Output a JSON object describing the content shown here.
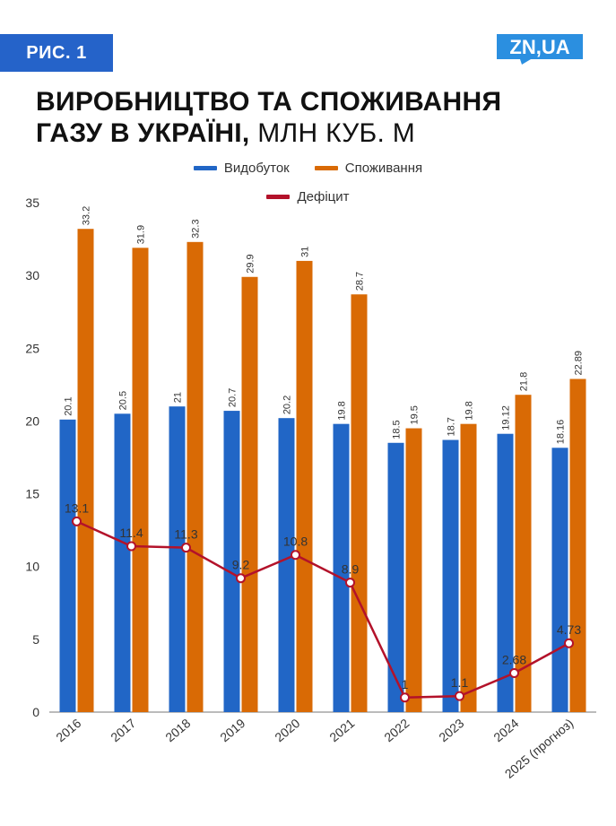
{
  "header": {
    "figure_label": "РИС. 1",
    "logo_text": "ZN,UA",
    "title_bold": "ВИРОБНИЦТВО ТА СПОЖИВАННЯ ГАЗУ В УКРАЇНІ,",
    "title_line1": "ВИРОБНИЦТВО ТА СПОЖИВАННЯ",
    "title_line2_bold": "ГАЗУ В УКРАЇНІ,",
    "title_line2_light": " МЛН КУБ. М"
  },
  "colors": {
    "production": "#2166c6",
    "consumption": "#d96a05",
    "deficit": "#b3122a",
    "axis": "#333333",
    "badge": "#2563c9"
  },
  "chart_data": {
    "type": "bar",
    "categories": [
      "2016",
      "2017",
      "2018",
      "2019",
      "2020",
      "2021",
      "2022",
      "2023",
      "2024",
      "2025 (прогноз)"
    ],
    "series": [
      {
        "name": "Видобуток",
        "kind": "bar",
        "values": [
          20.1,
          20.5,
          21,
          20.7,
          20.2,
          19.8,
          18.5,
          18.7,
          19.12,
          18.16
        ],
        "labels": [
          "20.1",
          "20.5",
          "21",
          "20.7",
          "20.2",
          "19.8",
          "18.5",
          "18.7",
          "19.12",
          "18.16"
        ]
      },
      {
        "name": "Споживання",
        "kind": "bar",
        "values": [
          33.2,
          31.9,
          32.3,
          29.9,
          31,
          28.7,
          19.5,
          19.8,
          21.8,
          22.89
        ],
        "labels": [
          "33.2",
          "31.9",
          "32.3",
          "29.9",
          "31",
          "28.7",
          "19.5",
          "19.8",
          "21.8",
          "22.89"
        ]
      },
      {
        "name": "Дефіцит",
        "kind": "line",
        "values": [
          13.1,
          11.4,
          11.3,
          9.2,
          10.8,
          8.9,
          1,
          1.1,
          2.68,
          4.73
        ],
        "labels": [
          "13.1",
          "11.4",
          "11.3",
          "9.2",
          "10.8",
          "8.9",
          "1",
          "1.1",
          "2.68",
          "4.73"
        ]
      }
    ],
    "y_ticks": [
      "0",
      "5",
      "10",
      "15",
      "20",
      "25",
      "30",
      "35"
    ],
    "ylim": [
      0,
      35
    ],
    "grid": false,
    "legend_position": "top-center"
  }
}
